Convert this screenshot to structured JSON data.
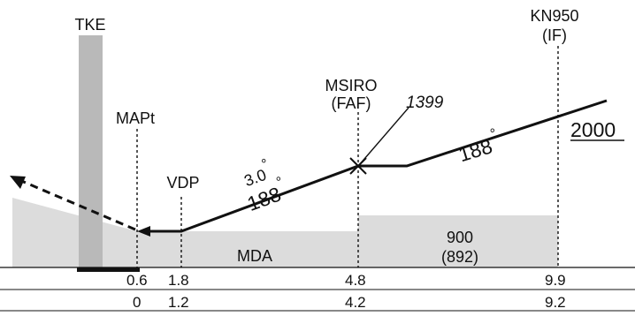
{
  "colors": {
    "terrain_fill": "#dcdcdc",
    "runway_bar": "#b9b9b9",
    "line": "#111111"
  },
  "fixes": {
    "tke": "TKE",
    "mapt": "MAPt",
    "vdp": "VDP",
    "msiro_name": "MSIRO",
    "msiro_role": "(FAF)",
    "kn950_name": "KN950",
    "kn950_role": "(IF)"
  },
  "altitudes": {
    "crossing": "1399",
    "initial": "2000"
  },
  "segments": {
    "intermediate_course": "188",
    "final_course": "188",
    "glide_angle": "3.0"
  },
  "minimums": {
    "mda_label": "MDA",
    "step_altitude": "900",
    "step_height": "(892)"
  },
  "distance_rows": [
    {
      "values": [
        "0.6",
        "1.8",
        "4.8",
        "9.9"
      ]
    },
    {
      "values": [
        "0",
        "1.2",
        "4.2",
        "9.2"
      ]
    }
  ],
  "icons": {
    "missed_approach": "dashed-arrow-icon",
    "faf": "maltese-cross-icon"
  }
}
